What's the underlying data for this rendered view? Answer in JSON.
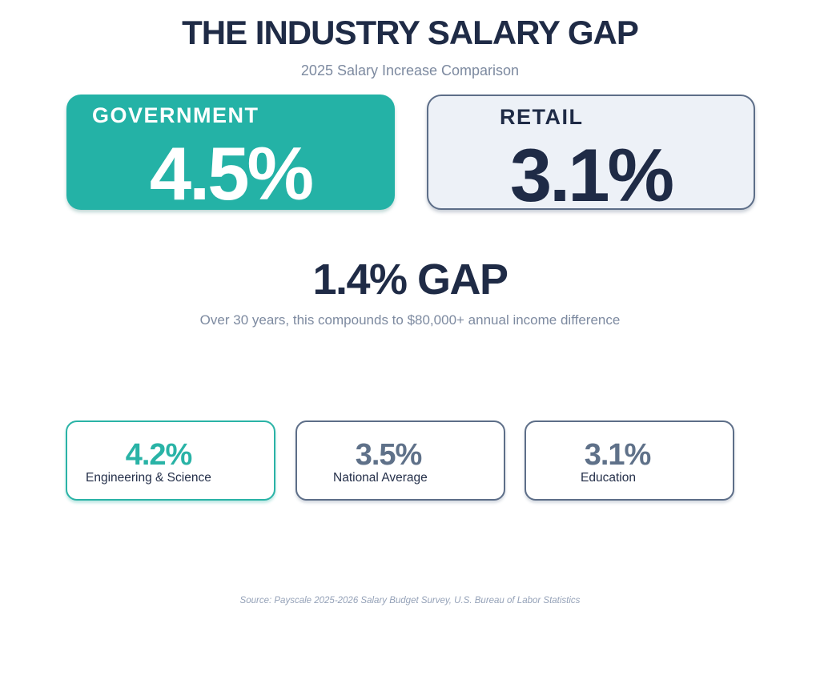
{
  "header": {
    "title": "THE INDUSTRY SALARY GAP",
    "subtitle": "2025 Salary Increase Comparison"
  },
  "comparison": {
    "government": {
      "label": "GOVERNMENT",
      "value": "4.5%"
    },
    "retail": {
      "label": "RETAIL",
      "value": "3.1%"
    }
  },
  "gap": {
    "headline": "1.4% GAP",
    "note": "Over 30 years, this compounds to $80,000+ annual income difference"
  },
  "stats": [
    {
      "value": "4.2%",
      "label": "Engineering & Science"
    },
    {
      "value": "3.5%",
      "label": "National Average"
    },
    {
      "value": "3.1%",
      "label": "Education"
    }
  ],
  "footer": {
    "source": "Source: Payscale 2025-2026 Salary Budget Survey, U.S. Bureau of Labor Statistics"
  },
  "colors": {
    "teal": "#24b2a6",
    "navy": "#1f2b46",
    "slate": "#5f7189",
    "slate_border": "#5d6e88",
    "retail_card_bg": "#edf1f7",
    "muted_text": "#7d8aa0",
    "source_text": "#95a2b8",
    "background": "#ffffff"
  },
  "chart_data": {
    "type": "table",
    "title": "THE INDUSTRY SALARY GAP",
    "subtitle": "2025 Salary Increase Comparison",
    "categories": [
      "Government",
      "Retail",
      "Engineering & Science",
      "National Average",
      "Education"
    ],
    "values": [
      4.5,
      3.1,
      4.2,
      3.5,
      3.1
    ],
    "unit": "% salary increase",
    "annotations": [
      "1.4% GAP",
      "Over 30 years, this compounds to $80,000+ annual income difference"
    ],
    "source": "Payscale 2025-2026 Salary Budget Survey, U.S. Bureau of Labor Statistics"
  }
}
